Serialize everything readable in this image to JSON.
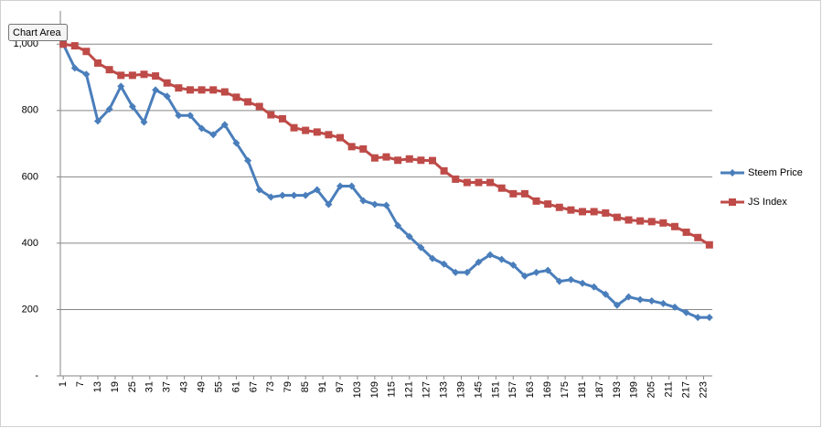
{
  "chart_data": {
    "type": "line",
    "tooltip": "Chart Area",
    "x": [
      1,
      5,
      9,
      13,
      17,
      21,
      25,
      29,
      33,
      37,
      41,
      45,
      49,
      53,
      57,
      61,
      65,
      69,
      73,
      77,
      81,
      85,
      89,
      93,
      97,
      101,
      105,
      109,
      113,
      117,
      121,
      125,
      129,
      133,
      137,
      141,
      145,
      149,
      153,
      157,
      161,
      165,
      169,
      173,
      177,
      181,
      185,
      189,
      193,
      197,
      201,
      205,
      209,
      213,
      217,
      221,
      225
    ],
    "series": [
      {
        "name": "Steem Price",
        "color": "#4a7ebb",
        "marker": "diamond",
        "values": [
          1000,
          928,
          909,
          768,
          804,
          873,
          812,
          765,
          862,
          843,
          785,
          785,
          746,
          727,
          757,
          702,
          649,
          561,
          539,
          544,
          544,
          544,
          561,
          517,
          572,
          572,
          528,
          517,
          514,
          453,
          420,
          387,
          354,
          337,
          312,
          312,
          343,
          365,
          351,
          334,
          301,
          312,
          318,
          285,
          290,
          279,
          268,
          246,
          213,
          238,
          230,
          226,
          218,
          207,
          191,
          176,
          176
        ]
      },
      {
        "name": "JS Index",
        "color": "#be4b48",
        "marker": "square",
        "values": [
          1000,
          995,
          978,
          943,
          923,
          906,
          906,
          909,
          904,
          883,
          868,
          862,
          862,
          862,
          856,
          840,
          826,
          812,
          787,
          775,
          748,
          740,
          735,
          727,
          718,
          691,
          684,
          657,
          660,
          650,
          654,
          650,
          649,
          618,
          593,
          583,
          583,
          583,
          566,
          549,
          549,
          527,
          518,
          508,
          500,
          495,
          495,
          491,
          478,
          470,
          467,
          465,
          461,
          450,
          433,
          417,
          395
        ]
      }
    ],
    "xlim": [
      0,
      226
    ],
    "xticks": [
      1,
      7,
      13,
      19,
      25,
      31,
      37,
      43,
      49,
      55,
      61,
      67,
      73,
      79,
      85,
      91,
      97,
      103,
      109,
      115,
      121,
      127,
      133,
      139,
      145,
      151,
      157,
      163,
      169,
      175,
      181,
      187,
      193,
      199,
      205,
      211,
      217,
      223
    ],
    "ylim": [
      0,
      1100
    ],
    "yticks": [
      {
        "value": 0,
        "label": "-"
      },
      200,
      400,
      600,
      800,
      {
        "value": 1000,
        "label": "1,000"
      }
    ],
    "grid": true,
    "legend": "right"
  }
}
